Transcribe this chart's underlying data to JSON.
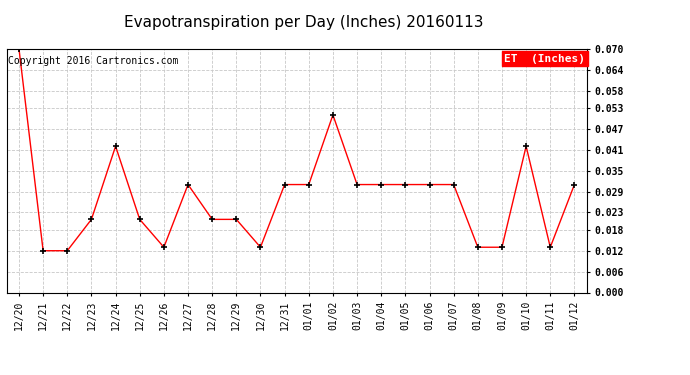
{
  "title": "Evapotranspiration per Day (Inches) 20160113",
  "copyright": "Copyright 2016 Cartronics.com",
  "legend_label": "ET  (Inches)",
  "legend_bg": "#ff0000",
  "legend_text_color": "#ffffff",
  "x_labels": [
    "12/20",
    "12/21",
    "12/22",
    "12/23",
    "12/24",
    "12/25",
    "12/26",
    "12/27",
    "12/28",
    "12/29",
    "12/30",
    "12/31",
    "01/01",
    "01/02",
    "01/03",
    "01/04",
    "01/05",
    "01/06",
    "01/07",
    "01/08",
    "01/09",
    "01/10",
    "01/11",
    "01/12"
  ],
  "y_values": [
    0.07,
    0.012,
    0.012,
    0.021,
    0.042,
    0.021,
    0.013,
    0.031,
    0.021,
    0.021,
    0.013,
    0.031,
    0.031,
    0.051,
    0.031,
    0.031,
    0.031,
    0.031,
    0.031,
    0.013,
    0.013,
    0.042,
    0.013,
    0.031
  ],
  "line_color": "#ff0000",
  "marker": "+",
  "marker_color": "#000000",
  "marker_size": 5,
  "background_color": "#ffffff",
  "grid_color": "#c8c8c8",
  "ylim": [
    0.0,
    0.07
  ],
  "yticks": [
    0.0,
    0.006,
    0.012,
    0.018,
    0.023,
    0.029,
    0.035,
    0.041,
    0.047,
    0.053,
    0.058,
    0.064,
    0.07
  ],
  "title_fontsize": 11,
  "copyright_fontsize": 7,
  "tick_fontsize": 7,
  "legend_fontsize": 8
}
